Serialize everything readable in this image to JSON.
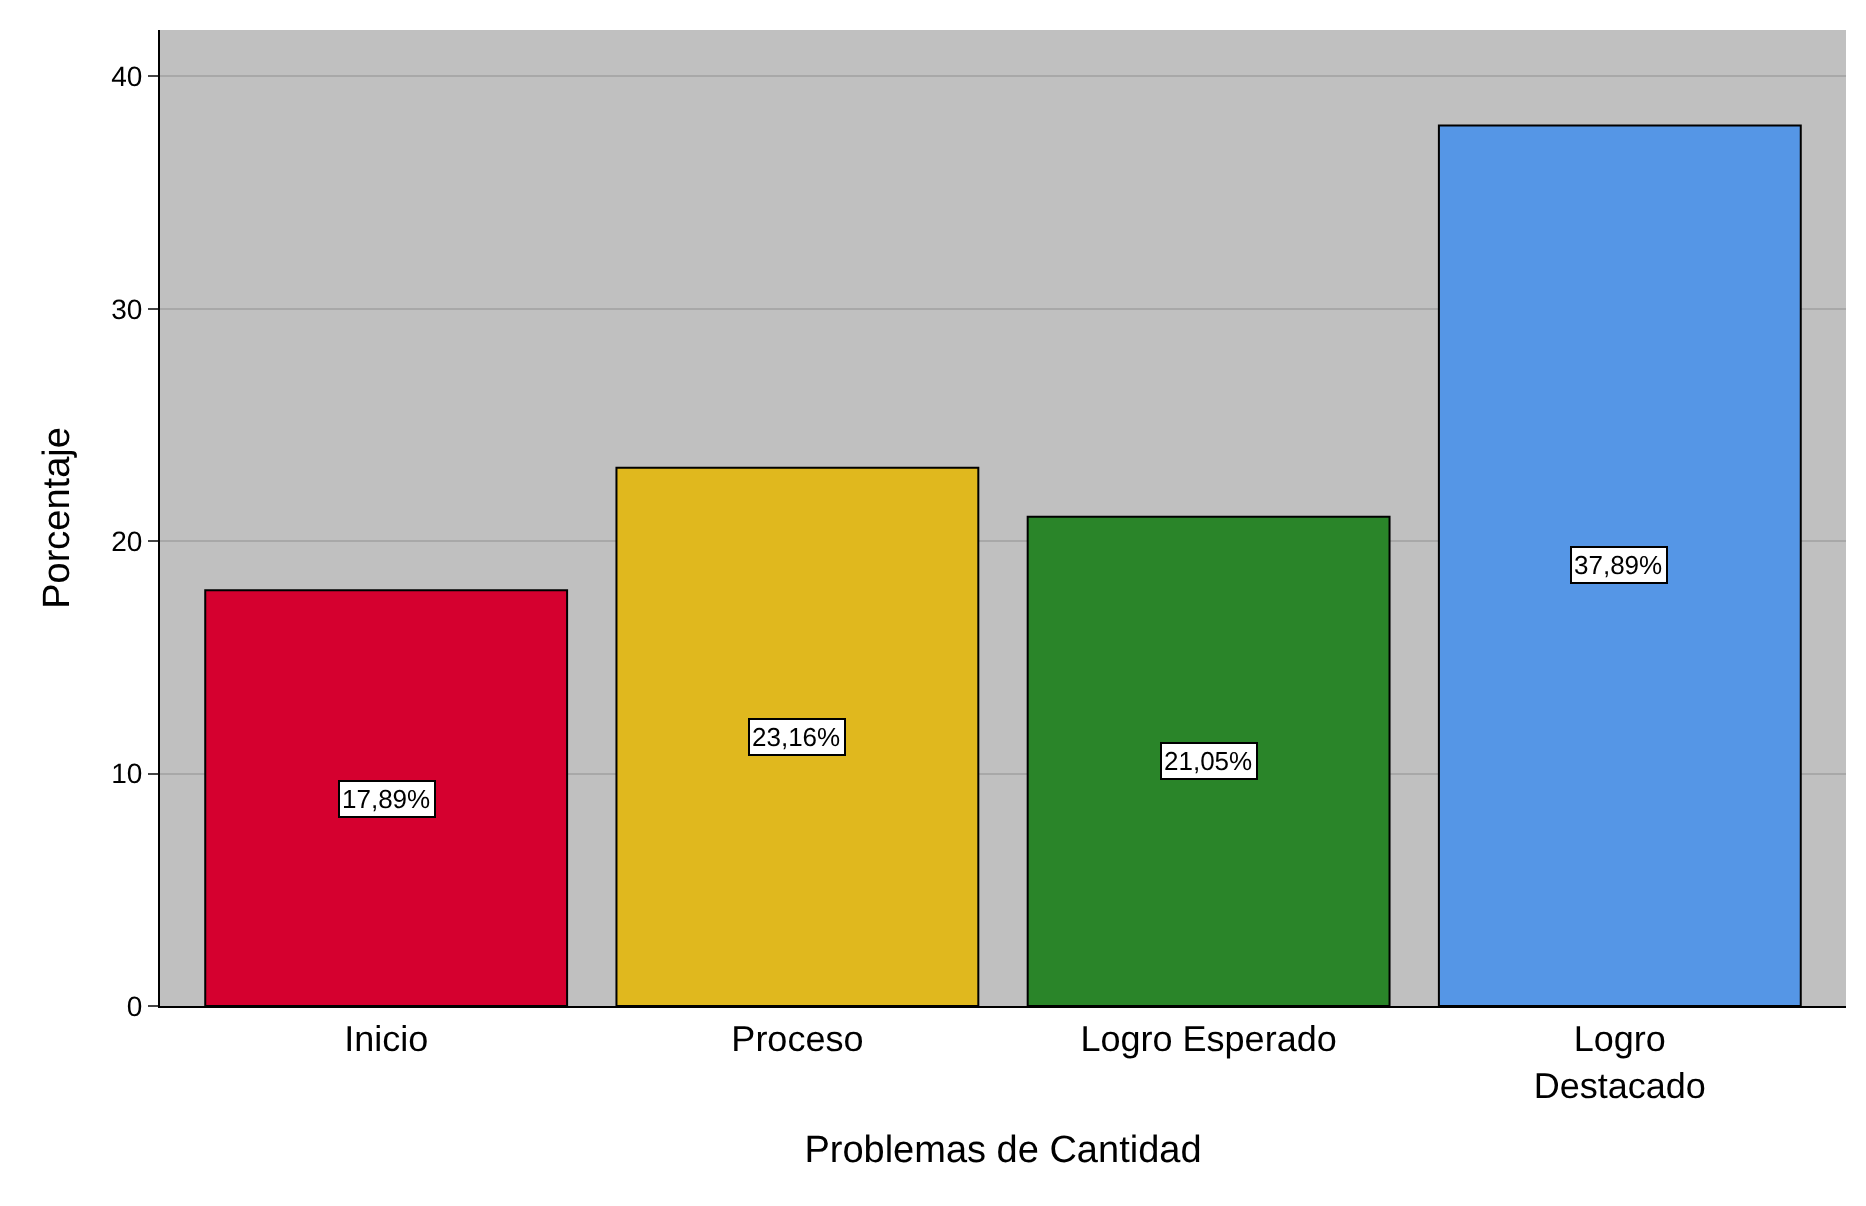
{
  "chart_data": {
    "type": "bar",
    "xlabel": "Problemas de Cantidad",
    "ylabel": "Porcentaje",
    "categories": [
      "Inicio",
      "Proceso",
      "Logro Esperado",
      "Logro\nDestacado"
    ],
    "values": [
      17.89,
      23.16,
      21.05,
      37.89
    ],
    "colors": [
      "#d5002f",
      "#e0b81e",
      "#2a8529",
      "#5596e6"
    ],
    "value_labels": [
      "17,89%",
      "23,16%",
      "21,05%",
      "37,89%"
    ],
    "ylim": [
      0,
      42
    ],
    "yticks": [
      0,
      10,
      20,
      30,
      40
    ],
    "grid": "y",
    "legend": false
  }
}
